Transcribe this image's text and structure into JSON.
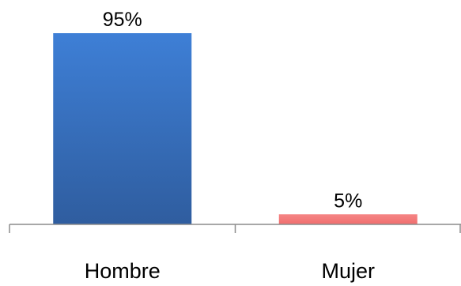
{
  "chart_data": {
    "type": "bar",
    "categories": [
      "Hombre",
      "Mujer"
    ],
    "values": [
      95,
      5
    ],
    "data_labels": [
      "95%",
      "5%"
    ],
    "series": [
      {
        "values": [
          95,
          5
        ],
        "colors": [
          "#3a72c0",
          "#f47c7c"
        ]
      }
    ],
    "ylim": [
      0,
      100
    ],
    "grid": false,
    "legend": "none",
    "title": "",
    "xlabel": "",
    "ylabel": ""
  }
}
